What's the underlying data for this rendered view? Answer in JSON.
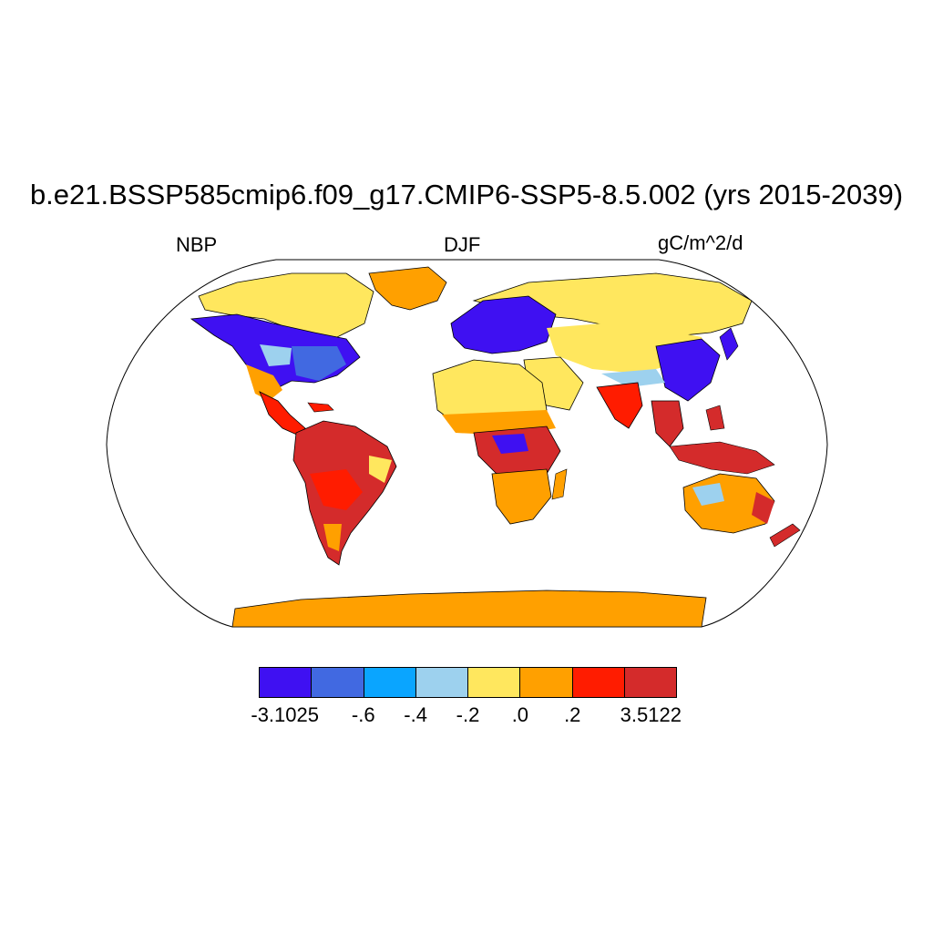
{
  "title": "b.e21.BSSP585cmip6.f09_g17.CMIP6-SSP5-8.5.002 (yrs 2015-2039)",
  "left_label": "NBP",
  "center_label": "DJF",
  "right_label": "gC/m^2/d",
  "colorbar": {
    "colors": [
      "#3f10f2",
      "#4169e1",
      "#0aa5ff",
      "#9dd1ee",
      "#ffe75e",
      "#ffa000",
      "#ff1c00",
      "#d42b2b"
    ],
    "labels": [
      "-3.1025",
      "-.6",
      "-.4",
      "-.2",
      ".0",
      ".2",
      "3.5122"
    ]
  },
  "map_legend_colors": {
    "ocean": "#ffffff",
    "coastline": "#000000"
  }
}
